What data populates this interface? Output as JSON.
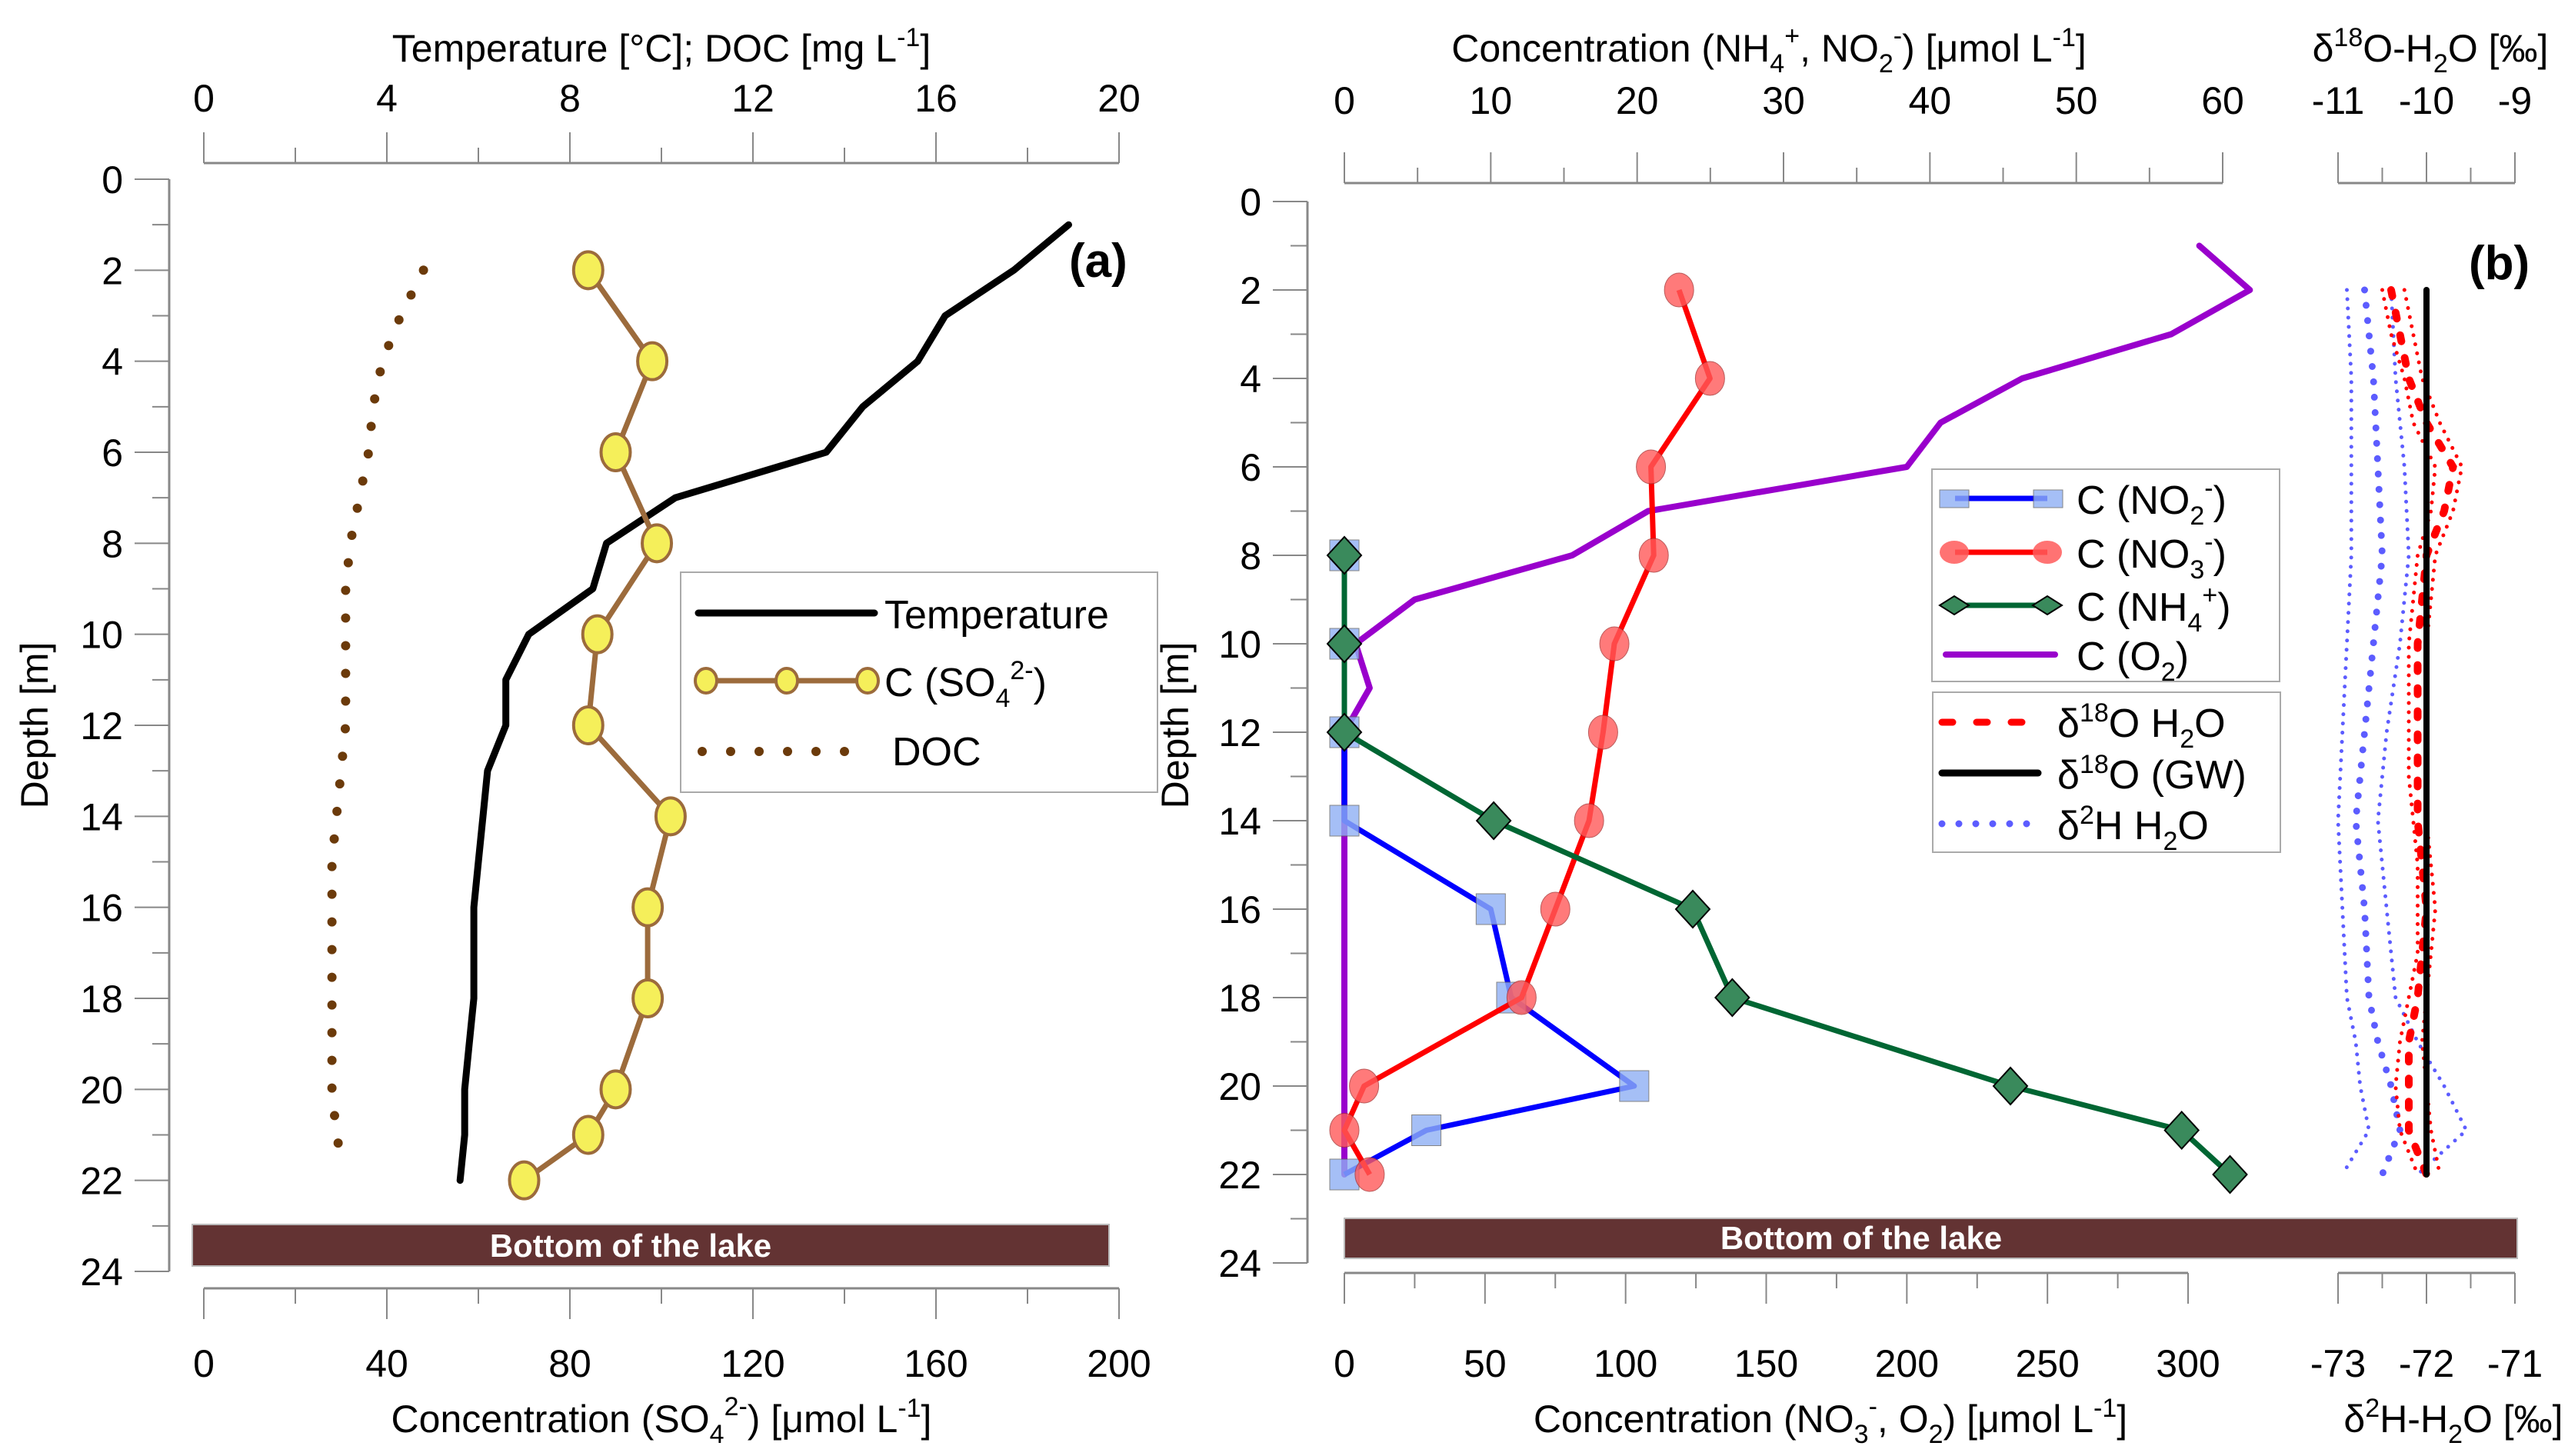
{
  "chart_data": [
    {
      "panel": "(a)",
      "type": "line",
      "ylabel": "Depth [m]",
      "ylim": [
        0,
        24
      ],
      "yticks": [
        0,
        2,
        4,
        6,
        8,
        10,
        12,
        14,
        16,
        18,
        20,
        22,
        24
      ],
      "y_inverted": true,
      "top_axis": {
        "label": "Temperature [°C]; DOC [mg L⁻¹]",
        "lim": [
          0,
          20
        ],
        "ticks": [
          0,
          4,
          8,
          12,
          16,
          20
        ]
      },
      "bottom_axis": {
        "label": "Concentration (SO₄²⁻) [μmol L⁻¹]",
        "lim": [
          0,
          200
        ],
        "ticks": [
          0,
          40,
          80,
          120,
          160,
          200
        ]
      },
      "annotation": "Bottom of the lake",
      "legend_placement": "right-middle",
      "series": [
        {
          "name": "Temperature",
          "axis": "top",
          "style": "solid",
          "color": "#000000",
          "depth": [
            1,
            2,
            3,
            4,
            5,
            6,
            7,
            8,
            9,
            10,
            11,
            12,
            13,
            14,
            15,
            16,
            17,
            18,
            19,
            20,
            21,
            22
          ],
          "values": [
            18.9,
            17.7,
            16.2,
            15.6,
            14.4,
            13.6,
            10.3,
            8.8,
            8.5,
            7.1,
            6.6,
            6.6,
            6.2,
            6.1,
            6.0,
            5.9,
            5.9,
            5.9,
            5.8,
            5.7,
            5.7,
            5.6
          ]
        },
        {
          "name": "C (SO₄²⁻)",
          "axis": "bottom",
          "style": "line-marker",
          "color": "#9c6b3c",
          "marker_fill": "#f5ef5a",
          "depth": [
            2,
            4,
            6,
            8,
            10,
            12,
            14,
            16,
            18,
            20,
            21,
            22
          ],
          "values": [
            84,
            98,
            90,
            99,
            86,
            84,
            102,
            97,
            97,
            90,
            84,
            70
          ]
        },
        {
          "name": "DOC",
          "axis": "top",
          "style": "dotted",
          "color": "#6b3a0a",
          "depth": [
            2,
            3,
            4,
            5,
            6,
            7,
            8,
            9,
            10,
            11,
            12,
            13,
            14,
            15,
            16,
            17,
            18,
            19,
            20,
            21,
            21.5
          ],
          "values": [
            4.8,
            4.3,
            3.9,
            3.7,
            3.6,
            3.4,
            3.2,
            3.1,
            3.1,
            3.1,
            3.1,
            3.0,
            2.9,
            2.8,
            2.8,
            2.8,
            2.8,
            2.8,
            2.8,
            2.9,
            3.0
          ]
        }
      ]
    },
    {
      "panel": "(b)",
      "type": "line",
      "ylabel": "Depth [m]",
      "ylim": [
        0,
        24
      ],
      "yticks": [
        0,
        2,
        4,
        6,
        8,
        10,
        12,
        14,
        16,
        18,
        20,
        22,
        24
      ],
      "y_inverted": true,
      "top_axis": {
        "label": "Concentration (NH₄⁺, NO₂⁻) [μmol L⁻¹]",
        "lim": [
          0,
          60
        ],
        "ticks": [
          0,
          10,
          20,
          30,
          40,
          50,
          60
        ]
      },
      "bottom_axis": {
        "label": "Concentration (NO₃⁻, O₂) [μmol L⁻¹]",
        "lim": [
          0,
          300
        ],
        "ticks": [
          0,
          50,
          100,
          150,
          200,
          250,
          300
        ]
      },
      "iso_top_axis": {
        "label": "δ¹⁸O-H₂O [‰]",
        "lim": [
          -11,
          -9
        ],
        "ticks": [
          -11,
          -10,
          -9
        ]
      },
      "iso_bottom_axis": {
        "label": "δ²H-H₂O [‰]",
        "lim": [
          -73,
          -71
        ],
        "ticks": [
          -73,
          -72,
          -71
        ]
      },
      "annotation": "Bottom of the lake",
      "legend_placement": "right-middle",
      "series": [
        {
          "name": "C (NO₂⁻)",
          "axis": "top",
          "style": "line-square",
          "color": "#0000ff",
          "marker_fill": "#8fb0f5",
          "depth": [
            8,
            10,
            12,
            14,
            16,
            18,
            20,
            21,
            22
          ],
          "values": [
            0,
            0,
            0,
            0,
            10.0,
            11.4,
            19.8,
            5.6,
            0
          ]
        },
        {
          "name": "C (NO₃⁻)",
          "axis": "bottom",
          "style": "line-circle",
          "color": "#ff0000",
          "marker_fill": "#ff5a5a",
          "depth": [
            2,
            4,
            6,
            8,
            10,
            12,
            14,
            16,
            18,
            20,
            21,
            22
          ],
          "values": [
            119,
            130,
            109,
            110,
            96,
            92,
            87,
            75,
            63,
            7,
            0,
            9
          ]
        },
        {
          "name": "C (NH₄⁺)",
          "axis": "top",
          "style": "line-diamond",
          "color": "#006633",
          "marker_fill": "#3a8a5c",
          "depth": [
            8,
            10,
            12,
            14,
            16,
            18,
            20,
            21,
            22
          ],
          "values": [
            0,
            0,
            0,
            10.2,
            23.8,
            26.5,
            45.5,
            57.2,
            60.5
          ]
        },
        {
          "name": "C (O₂)",
          "axis": "bottom",
          "style": "solid",
          "color": "#9900cc",
          "depth": [
            1,
            2,
            3,
            4,
            5,
            6,
            7,
            8,
            9,
            10,
            11,
            12,
            14,
            16,
            18,
            20,
            22
          ],
          "values": [
            304,
            322,
            294,
            241,
            212,
            200,
            108,
            81,
            25,
            4,
            9,
            0,
            0,
            0,
            0,
            0,
            0
          ]
        },
        {
          "name": "δ¹⁸O H₂O",
          "axis": "iso_top",
          "style": "dashed",
          "color": "#ff0000",
          "depth": [
            2,
            3,
            4,
            5,
            6,
            7,
            8,
            9,
            10,
            11,
            12,
            13,
            14,
            15,
            16,
            17,
            18,
            19,
            20,
            21,
            22
          ],
          "values": [
            -10.4,
            -10.3,
            -10.2,
            -10.0,
            -9.7,
            -9.8,
            -10.0,
            -10.05,
            -10.1,
            -10.1,
            -10.1,
            -10.1,
            -10.1,
            -10.05,
            -10.0,
            -10.05,
            -10.1,
            -10.2,
            -10.2,
            -10.2,
            -10.0
          ],
          "band_lower": [
            -10.5,
            -10.4,
            -10.25,
            -10.15,
            -9.9,
            -9.95,
            -10.1,
            -10.15,
            -10.2,
            -10.2,
            -10.2,
            -10.2,
            -10.15,
            -10.1,
            -10.1,
            -10.1,
            -10.2,
            -10.3,
            -10.35,
            -10.3,
            -10.1
          ],
          "band_upper": [
            -10.25,
            -10.15,
            -10.05,
            -9.85,
            -9.6,
            -9.7,
            -9.9,
            -9.95,
            -10.0,
            -10.0,
            -10.0,
            -10.0,
            -10.0,
            -9.95,
            -9.9,
            -9.95,
            -10.0,
            -10.05,
            -10.0,
            -9.95,
            -9.85
          ]
        },
        {
          "name": "δ¹⁸O (GW)",
          "axis": "iso_top",
          "style": "solid",
          "color": "#000000",
          "depth": [
            2,
            22
          ],
          "values": [
            -10.0,
            -10.0
          ]
        },
        {
          "name": "δ²H H₂O",
          "axis": "iso_bottom",
          "style": "dotted",
          "color": "#5c5cff",
          "depth": [
            2,
            4,
            6,
            8,
            10,
            12,
            14,
            16,
            18,
            19,
            20,
            21,
            22
          ],
          "values": [
            -72.7,
            -72.6,
            -72.55,
            -72.5,
            -72.6,
            -72.7,
            -72.8,
            -72.7,
            -72.65,
            -72.55,
            -72.4,
            -72.3,
            -72.5
          ],
          "band_lower": [
            -72.9,
            -72.85,
            -72.85,
            -72.85,
            -72.9,
            -72.95,
            -73.0,
            -72.95,
            -72.9,
            -72.8,
            -72.75,
            -72.65,
            -72.95
          ],
          "band_upper": [
            -72.4,
            -72.35,
            -72.25,
            -72.2,
            -72.3,
            -72.45,
            -72.55,
            -72.45,
            -72.35,
            -72.1,
            -71.8,
            -71.55,
            -72.1
          ]
        }
      ]
    }
  ],
  "panels": {
    "a": {
      "label": "(a)",
      "y_title": "Depth [m]",
      "top_title": "Temperature [°C]; DOC [mg L",
      "top_title_sup": "-1",
      "top_title_end": "]",
      "bottom_title_pre": "Concentration (SO",
      "bottom_title_sub": "4",
      "bottom_title_sup": "2-",
      "bottom_title_mid": ")  [μmol L",
      "bottom_title_sup2": "-1",
      "bottom_title_end": "]",
      "bottom_bar": "Bottom of the lake",
      "legend": [
        {
          "text": "Temperature"
        },
        {
          "pre": "C (SO",
          "sub": "4",
          "sup": "2-",
          "post": ")"
        },
        {
          "text": "DOC"
        }
      ]
    },
    "b": {
      "label": "(b)",
      "y_title": "Depth [m]",
      "top_title_pre": "Concentration (NH",
      "top_title_sub1": "4",
      "top_title_sup1": "+",
      "top_title_mid": ", NO",
      "top_title_sub2": "2",
      "top_title_sup2": "-",
      "top_title_mid2": ") [μmol L",
      "top_title_sup3": "-1",
      "top_title_end": "]",
      "bottom_title_pre": "Concentration (NO",
      "bottom_title_sub": "3",
      "bottom_title_sup": "-",
      "bottom_title_mid": ", O",
      "bottom_title_sub2": "2",
      "bottom_title_mid2": ") [μmol L",
      "bottom_title_sup2": "-1",
      "bottom_title_end": "]",
      "iso_top_pre": "δ",
      "iso_top_sup": "18",
      "iso_top_mid": "O-H",
      "iso_top_sub": "2",
      "iso_top_end": "O [‰]",
      "iso_bottom_pre": "δ",
      "iso_bottom_sup": "2",
      "iso_bottom_mid": "H-H",
      "iso_bottom_sub": "2",
      "iso_bottom_end": "O [‰]",
      "bottom_bar": "Bottom of the lake",
      "legend1": [
        {
          "pre": "C (NO",
          "sub": "2",
          "sup": "-",
          "post": ")"
        },
        {
          "pre": "C (NO",
          "sub": "3",
          "sup": "-",
          "post": ")"
        },
        {
          "pre": "C (NH",
          "sub": "4",
          "sup": "+",
          "post": ")"
        },
        {
          "pre": "C (O",
          "sub": "2",
          "sup": "",
          "post": ")"
        }
      ],
      "legend2": [
        {
          "pre": "δ",
          "sup": "18",
          "post": "O H",
          "sub": "2",
          "end": "O"
        },
        {
          "pre": "δ",
          "sup": "18",
          "post": "O (GW)",
          "sub": "",
          "end": ""
        },
        {
          "pre": "δ",
          "sup": "2",
          "post": "H H",
          "sub": "2",
          "end": "O"
        }
      ]
    }
  },
  "colors": {
    "axis": "#888888",
    "bottom_bar": "#633333",
    "temperature": "#000000",
    "so4_line": "#9c6b3c",
    "so4_fill": "#f5ef5a",
    "doc": "#6b3a0a",
    "no2_line": "#0000ff",
    "no2_fill": "#8fb0f5",
    "no3_line": "#ff0000",
    "no3_fill": "#ff5a5a",
    "nh4_line": "#006633",
    "nh4_fill": "#3a8a5c",
    "o2": "#9900cc",
    "d18o": "#ff0000",
    "gw": "#000000",
    "d2h": "#5c5cff"
  }
}
